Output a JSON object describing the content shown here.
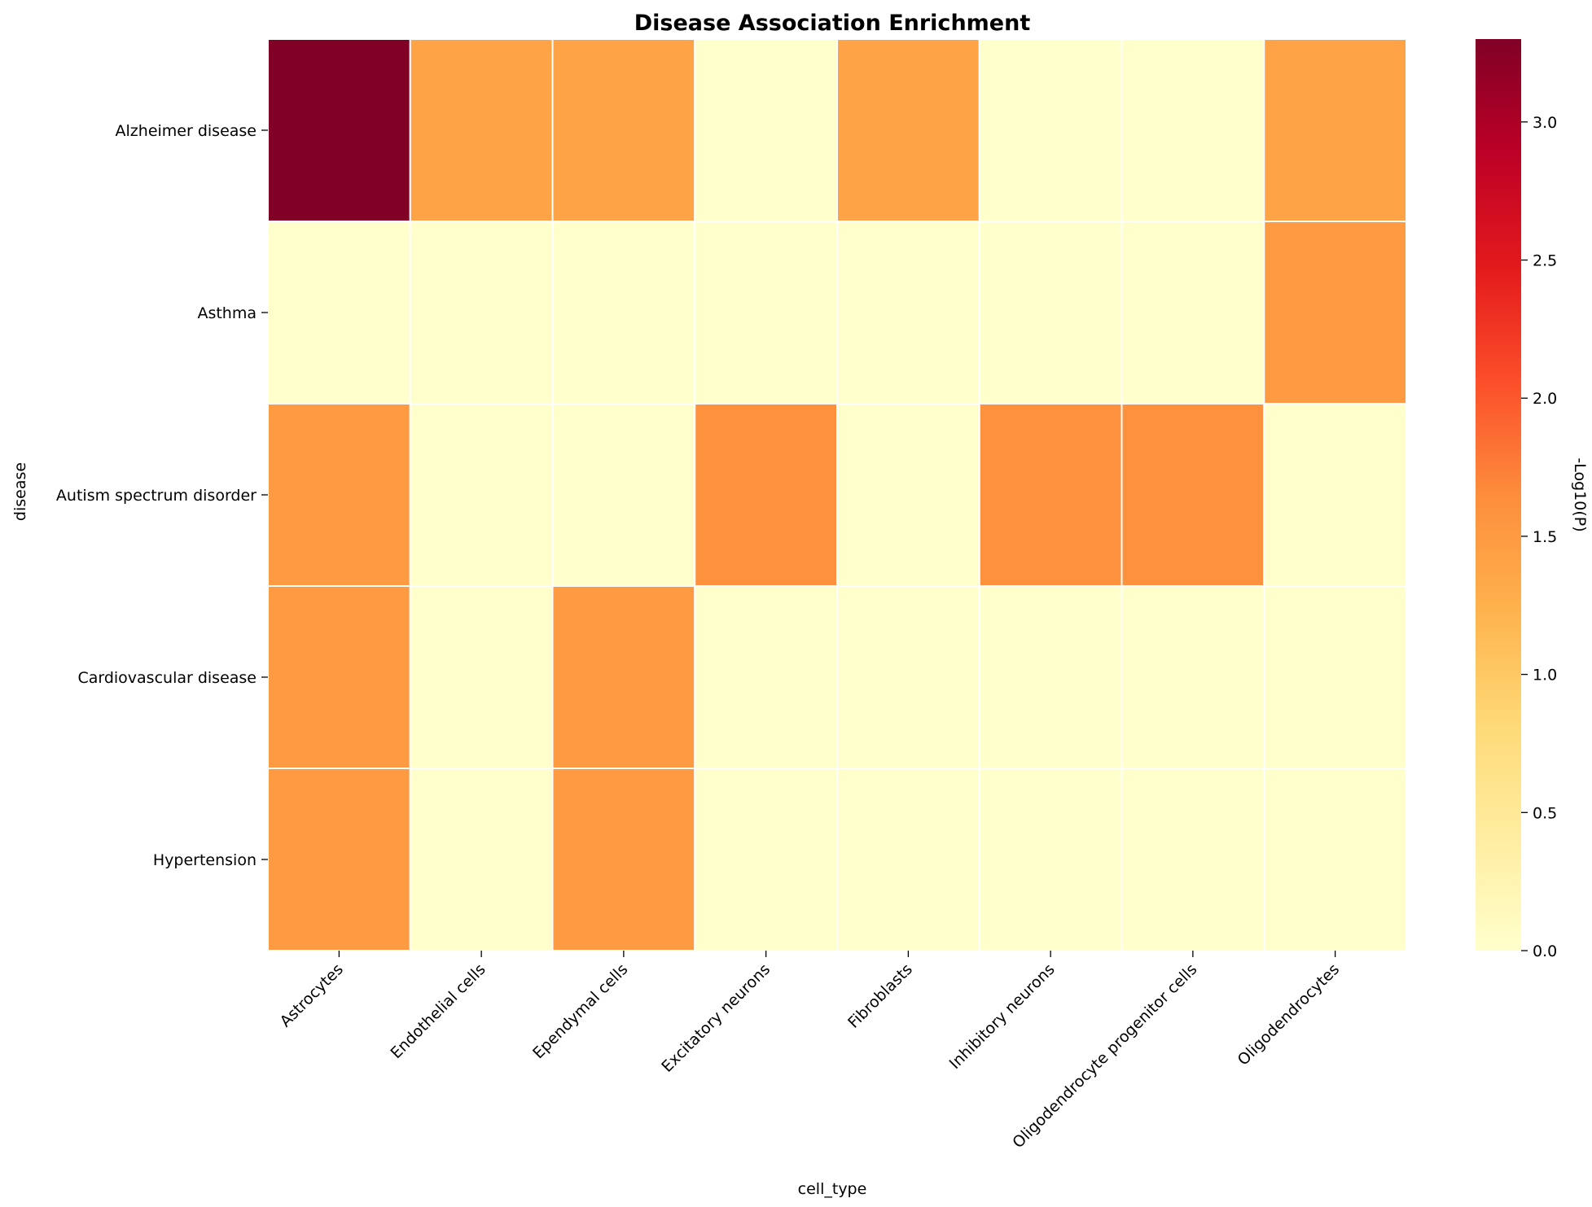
{
  "chart_data": {
    "type": "heatmap",
    "title": "Disease Association Enrichment",
    "xlabel": "cell_type",
    "ylabel": "disease",
    "x_categories": [
      "Astrocytes",
      "Endothelial cells",
      "Ependymal cells",
      "Excitatory neurons",
      "Fibroblasts",
      "Inhibitory neurons",
      "Oligodendrocyte progenitor cells",
      "Oligodendrocytes"
    ],
    "y_categories": [
      "Alzheimer disease",
      "Asthma",
      "Autism spectrum disorder",
      "Cardiovascular disease",
      "Hypertension"
    ],
    "values": [
      [
        3.3,
        1.4,
        1.4,
        0.0,
        1.4,
        0.0,
        0.0,
        1.4
      ],
      [
        0.0,
        0.0,
        0.0,
        0.0,
        0.0,
        0.0,
        0.0,
        1.5
      ],
      [
        1.5,
        0.0,
        0.0,
        1.6,
        0.0,
        1.6,
        1.6,
        0.0
      ],
      [
        1.5,
        0.0,
        1.5,
        0.0,
        0.0,
        0.0,
        0.0,
        0.0
      ],
      [
        1.5,
        0.0,
        1.5,
        0.0,
        0.0,
        0.0,
        0.0,
        0.0
      ]
    ],
    "colormap": "YlOrRd",
    "colormap_stops": [
      "#ffffcc",
      "#ffeda0",
      "#fed976",
      "#feb24c",
      "#fd8d3c",
      "#fc4e2a",
      "#e31a1c",
      "#bd0026",
      "#800026"
    ],
    "vmin": 0.0,
    "vmax": 3.3,
    "colorbar": {
      "label": "-Log10(P)",
      "ticks": [
        0.0,
        0.5,
        1.0,
        1.5,
        2.0,
        2.5,
        3.0
      ],
      "tick_labels": [
        "0.0",
        "0.5",
        "1.0",
        "1.5",
        "2.0",
        "2.5",
        "3.0"
      ]
    },
    "grid": true,
    "grid_color": "#ffffff"
  }
}
